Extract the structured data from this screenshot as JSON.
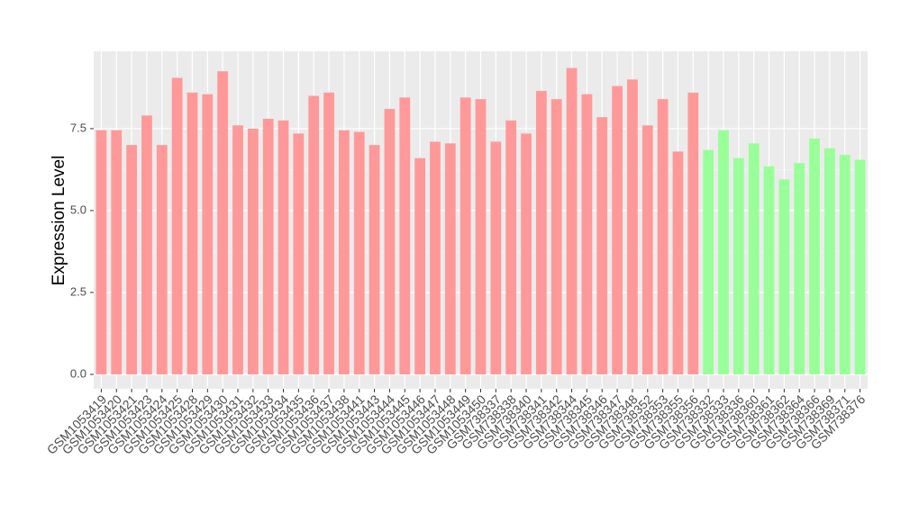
{
  "chart_data": {
    "type": "bar",
    "y_label": "Expression Level",
    "categories": [
      "GSM1053419",
      "GSM1053420",
      "GSM1053421",
      "GSM1053423",
      "GSM1053424",
      "GSM1053425",
      "GSM1053428",
      "GSM1053429",
      "GSM1053430",
      "GSM1053431",
      "GSM1053432",
      "GSM1053433",
      "GSM1053434",
      "GSM1053435",
      "GSM1053436",
      "GSM1053437",
      "GSM1053438",
      "GSM1053441",
      "GSM1053443",
      "GSM1053444",
      "GSM1053445",
      "GSM1053446",
      "GSM1053447",
      "GSM1053448",
      "GSM1053449",
      "GSM1053450",
      "GSM738337",
      "GSM738338",
      "GSM738340",
      "GSM738341",
      "GSM738342",
      "GSM738344",
      "GSM738345",
      "GSM738346",
      "GSM738347",
      "GSM738348",
      "GSM738352",
      "GSM738353",
      "GSM738355",
      "GSM738356",
      "GSM738332",
      "GSM738333",
      "GSM738336",
      "GSM738360",
      "GSM738361",
      "GSM738362",
      "GSM738364",
      "GSM738366",
      "GSM738369",
      "GSM738371",
      "GSM738376"
    ],
    "values": [
      7.45,
      7.45,
      7.0,
      7.9,
      7.0,
      9.05,
      8.6,
      8.55,
      9.25,
      7.6,
      7.5,
      7.8,
      7.75,
      7.35,
      8.5,
      8.6,
      7.45,
      7.4,
      7.0,
      8.1,
      8.45,
      6.6,
      7.1,
      7.05,
      8.45,
      8.4,
      7.1,
      7.75,
      7.35,
      8.65,
      8.4,
      9.35,
      8.55,
      7.85,
      8.8,
      9.0,
      7.6,
      8.4,
      6.8,
      8.6,
      6.85,
      7.45,
      6.6,
      7.05,
      6.35,
      5.95,
      6.45,
      7.2,
      6.9,
      6.7,
      6.55
    ],
    "colors": [
      "#ff9999",
      "#ff9999",
      "#ff9999",
      "#ff9999",
      "#ff9999",
      "#ff9999",
      "#ff9999",
      "#ff9999",
      "#ff9999",
      "#ff9999",
      "#ff9999",
      "#ff9999",
      "#ff9999",
      "#ff9999",
      "#ff9999",
      "#ff9999",
      "#ff9999",
      "#ff9999",
      "#ff9999",
      "#ff9999",
      "#ff9999",
      "#ff9999",
      "#ff9999",
      "#ff9999",
      "#ff9999",
      "#ff9999",
      "#ff9999",
      "#ff9999",
      "#ff9999",
      "#ff9999",
      "#ff9999",
      "#ff9999",
      "#ff9999",
      "#ff9999",
      "#ff9999",
      "#ff9999",
      "#ff9999",
      "#ff9999",
      "#ff9999",
      "#ff9999",
      "#99ff99",
      "#99ff99",
      "#99ff99",
      "#99ff99",
      "#99ff99",
      "#99ff99",
      "#99ff99",
      "#99ff99",
      "#99ff99",
      "#99ff99",
      "#99ff99"
    ],
    "ylim": [
      -0.44,
      9.86
    ],
    "yticks": [
      {
        "value": 0,
        "label": "0.0"
      },
      2.5,
      {
        "value": 5,
        "label": "5.0"
      },
      7.5
    ],
    "grid": true
  }
}
